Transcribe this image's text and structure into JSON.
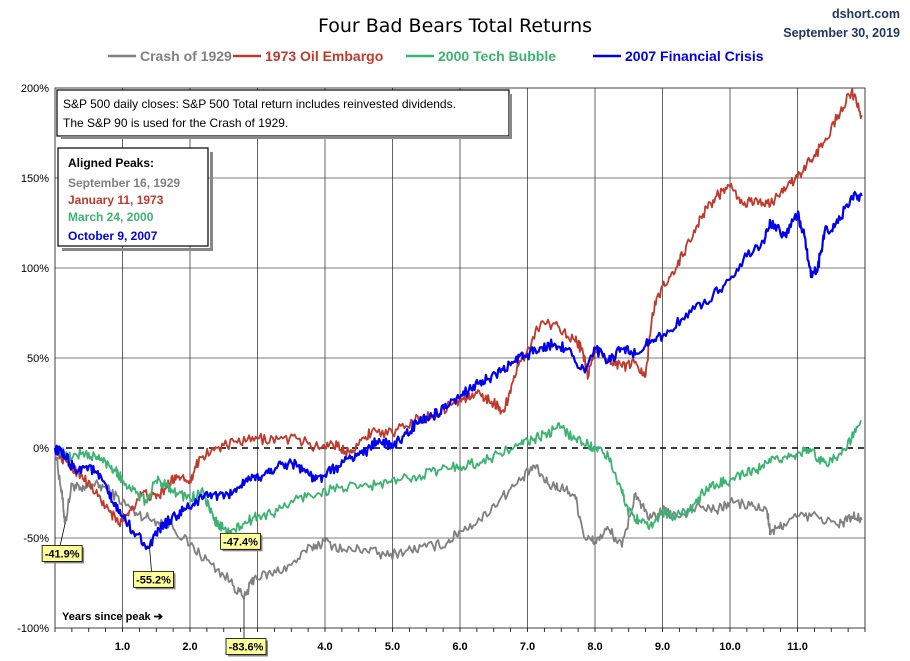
{
  "chart_data": {
    "type": "line",
    "title": "Four Bad Bears Total Returns",
    "source": "dshort.com",
    "date": "September 30, 2019",
    "xlabel": "Years since peak ➔",
    "ylabel": "",
    "xlim": [
      0,
      12
    ],
    "ylim": [
      -100,
      200
    ],
    "y_ticks": [
      "200%",
      "150%",
      "100%",
      "50%",
      "0%",
      "-50%",
      "-100%"
    ],
    "x_ticks": [
      "1.0",
      "2.0",
      "3.0",
      "4.0",
      "5.0",
      "6.0",
      "7.0",
      "8.0",
      "9.0",
      "10.0",
      "11.0"
    ],
    "grid": true,
    "legend_position": "top",
    "note_lines": [
      "S&P 500 daily closes: S&P 500 Total return includes reinvested dividends.",
      "The S&P 90 is used for the Crash of 1929."
    ],
    "aligned_peaks_title": "Aligned Peaks:",
    "series": [
      {
        "name": "Crash of 1929",
        "color": "#808080",
        "peak_date": "September 16, 1929",
        "points": [
          [
            0,
            0
          ],
          [
            0.1,
            -25
          ],
          [
            0.15,
            -42
          ],
          [
            0.25,
            -20
          ],
          [
            0.4,
            -24
          ],
          [
            0.55,
            -20
          ],
          [
            0.75,
            -22
          ],
          [
            1.0,
            -30
          ],
          [
            1.2,
            -36
          ],
          [
            1.45,
            -40
          ],
          [
            1.7,
            -42
          ],
          [
            2.0,
            -54
          ],
          [
            2.3,
            -64
          ],
          [
            2.6,
            -74
          ],
          [
            2.8,
            -83.6
          ],
          [
            2.95,
            -72
          ],
          [
            3.2,
            -70
          ],
          [
            3.5,
            -65
          ],
          [
            3.8,
            -55
          ],
          [
            4.0,
            -52
          ],
          [
            4.3,
            -57
          ],
          [
            4.6,
            -56
          ],
          [
            4.9,
            -60
          ],
          [
            5.2,
            -57
          ],
          [
            5.5,
            -55
          ],
          [
            5.8,
            -53
          ],
          [
            6.0,
            -46
          ],
          [
            6.3,
            -40
          ],
          [
            6.6,
            -28
          ],
          [
            6.9,
            -18
          ],
          [
            7.1,
            -10
          ],
          [
            7.3,
            -20
          ],
          [
            7.5,
            -22
          ],
          [
            7.7,
            -26
          ],
          [
            7.85,
            -50
          ],
          [
            8.0,
            -52
          ],
          [
            8.2,
            -45
          ],
          [
            8.4,
            -55
          ],
          [
            8.6,
            -25
          ],
          [
            8.8,
            -40
          ],
          [
            9.0,
            -35
          ],
          [
            9.2,
            -38
          ],
          [
            9.5,
            -32
          ],
          [
            9.8,
            -35
          ],
          [
            10.0,
            -30
          ],
          [
            10.3,
            -32
          ],
          [
            10.55,
            -35
          ],
          [
            10.6,
            -48
          ],
          [
            10.8,
            -42
          ],
          [
            11.0,
            -38
          ],
          [
            11.3,
            -38
          ],
          [
            11.6,
            -43
          ],
          [
            11.8,
            -38
          ],
          [
            11.95,
            -40
          ]
        ]
      },
      {
        "name": "1973 Oil Embargo",
        "color": "#c0392b",
        "peak_date": "January 11, 1973",
        "points": [
          [
            0,
            0
          ],
          [
            0.2,
            -10
          ],
          [
            0.4,
            -15
          ],
          [
            0.6,
            -25
          ],
          [
            0.8,
            -35
          ],
          [
            0.95,
            -42
          ],
          [
            1.1,
            -35
          ],
          [
            1.3,
            -25
          ],
          [
            1.5,
            -28
          ],
          [
            1.65,
            -22
          ],
          [
            1.8,
            -15
          ],
          [
            2.0,
            -18
          ],
          [
            2.15,
            -5
          ],
          [
            2.4,
            0
          ],
          [
            2.7,
            3
          ],
          [
            3.0,
            5
          ],
          [
            3.3,
            5
          ],
          [
            3.6,
            5
          ],
          [
            3.9,
            0
          ],
          [
            4.1,
            3
          ],
          [
            4.3,
            -2
          ],
          [
            4.5,
            2
          ],
          [
            4.7,
            10
          ],
          [
            5.0,
            8
          ],
          [
            5.3,
            15
          ],
          [
            5.6,
            18
          ],
          [
            5.9,
            25
          ],
          [
            6.1,
            28
          ],
          [
            6.3,
            30
          ],
          [
            6.5,
            25
          ],
          [
            6.65,
            20
          ],
          [
            6.8,
            40
          ],
          [
            7.0,
            55
          ],
          [
            7.2,
            70
          ],
          [
            7.45,
            68
          ],
          [
            7.7,
            60
          ],
          [
            7.8,
            55
          ],
          [
            7.9,
            40
          ],
          [
            8.0,
            55
          ],
          [
            8.2,
            50
          ],
          [
            8.4,
            45
          ],
          [
            8.6,
            48
          ],
          [
            8.75,
            40
          ],
          [
            8.85,
            75
          ],
          [
            9.0,
            90
          ],
          [
            9.2,
            100
          ],
          [
            9.4,
            115
          ],
          [
            9.6,
            130
          ],
          [
            9.8,
            140
          ],
          [
            10.0,
            145
          ],
          [
            10.2,
            135
          ],
          [
            10.4,
            138
          ],
          [
            10.6,
            135
          ],
          [
            10.8,
            145
          ],
          [
            11.0,
            150
          ],
          [
            11.2,
            160
          ],
          [
            11.4,
            170
          ],
          [
            11.6,
            185
          ],
          [
            11.8,
            198
          ],
          [
            11.95,
            185
          ]
        ]
      },
      {
        "name": "2000 Tech Bubble",
        "color": "#3cb371",
        "peak_date": "March 24, 2000",
        "points": [
          [
            0,
            0
          ],
          [
            0.2,
            -5
          ],
          [
            0.4,
            -3
          ],
          [
            0.6,
            -5
          ],
          [
            0.75,
            -8
          ],
          [
            0.9,
            -12
          ],
          [
            1.0,
            -18
          ],
          [
            1.2,
            -25
          ],
          [
            1.35,
            -30
          ],
          [
            1.5,
            -18
          ],
          [
            1.65,
            -20
          ],
          [
            1.8,
            -25
          ],
          [
            2.0,
            -28
          ],
          [
            2.2,
            -25
          ],
          [
            2.35,
            -40
          ],
          [
            2.5,
            -45
          ],
          [
            2.6,
            -47.4
          ],
          [
            2.8,
            -42
          ],
          [
            3.0,
            -38
          ],
          [
            3.3,
            -35
          ],
          [
            3.6,
            -28
          ],
          [
            3.9,
            -25
          ],
          [
            4.2,
            -22
          ],
          [
            4.5,
            -22
          ],
          [
            4.8,
            -20
          ],
          [
            5.1,
            -18
          ],
          [
            5.4,
            -15
          ],
          [
            5.7,
            -12
          ],
          [
            6.0,
            -10
          ],
          [
            6.3,
            -8
          ],
          [
            6.6,
            -3
          ],
          [
            6.9,
            2
          ],
          [
            7.1,
            5
          ],
          [
            7.3,
            8
          ],
          [
            7.5,
            12
          ],
          [
            7.7,
            5
          ],
          [
            7.9,
            2
          ],
          [
            8.0,
            0
          ],
          [
            8.2,
            -5
          ],
          [
            8.4,
            -25
          ],
          [
            8.5,
            -35
          ],
          [
            8.65,
            -40
          ],
          [
            8.8,
            -45
          ],
          [
            9.0,
            -35
          ],
          [
            9.2,
            -38
          ],
          [
            9.4,
            -35
          ],
          [
            9.6,
            -25
          ],
          [
            9.8,
            -20
          ],
          [
            10.0,
            -18
          ],
          [
            10.2,
            -15
          ],
          [
            10.4,
            -12
          ],
          [
            10.6,
            -8
          ],
          [
            10.8,
            -5
          ],
          [
            11.0,
            -3
          ],
          [
            11.2,
            -2
          ],
          [
            11.4,
            -8
          ],
          [
            11.6,
            -5
          ],
          [
            11.8,
            5
          ],
          [
            11.95,
            15
          ]
        ]
      },
      {
        "name": "2007 Financial Crisis",
        "color": "#0000ee",
        "peak_date": "October 9, 2007",
        "points": [
          [
            0,
            0
          ],
          [
            0.15,
            -5
          ],
          [
            0.3,
            -12
          ],
          [
            0.5,
            -10
          ],
          [
            0.7,
            -18
          ],
          [
            0.85,
            -30
          ],
          [
            1.0,
            -38
          ],
          [
            1.2,
            -48
          ],
          [
            1.4,
            -55.2
          ],
          [
            1.55,
            -45
          ],
          [
            1.7,
            -40
          ],
          [
            1.9,
            -35
          ],
          [
            2.1,
            -30
          ],
          [
            2.3,
            -25
          ],
          [
            2.5,
            -28
          ],
          [
            2.7,
            -22
          ],
          [
            2.9,
            -18
          ],
          [
            3.1,
            -15
          ],
          [
            3.3,
            -10
          ],
          [
            3.5,
            -8
          ],
          [
            3.7,
            -12
          ],
          [
            3.85,
            -18
          ],
          [
            4.0,
            -15
          ],
          [
            4.2,
            -10
          ],
          [
            4.4,
            -5
          ],
          [
            4.6,
            -2
          ],
          [
            4.8,
            5
          ],
          [
            5.0,
            0
          ],
          [
            5.2,
            8
          ],
          [
            5.4,
            15
          ],
          [
            5.6,
            18
          ],
          [
            5.8,
            22
          ],
          [
            6.0,
            28
          ],
          [
            6.2,
            35
          ],
          [
            6.4,
            38
          ],
          [
            6.6,
            42
          ],
          [
            6.8,
            48
          ],
          [
            7.0,
            52
          ],
          [
            7.2,
            56
          ],
          [
            7.4,
            58
          ],
          [
            7.6,
            55
          ],
          [
            7.85,
            42
          ],
          [
            8.0,
            55
          ],
          [
            8.2,
            48
          ],
          [
            8.4,
            55
          ],
          [
            8.6,
            52
          ],
          [
            8.8,
            60
          ],
          [
            9.0,
            62
          ],
          [
            9.3,
            72
          ],
          [
            9.6,
            80
          ],
          [
            9.9,
            90
          ],
          [
            10.2,
            105
          ],
          [
            10.5,
            115
          ],
          [
            10.6,
            125
          ],
          [
            10.8,
            118
          ],
          [
            11.0,
            130
          ],
          [
            11.1,
            118
          ],
          [
            11.2,
            95
          ],
          [
            11.3,
            100
          ],
          [
            11.4,
            120
          ],
          [
            11.6,
            125
          ],
          [
            11.8,
            140
          ],
          [
            11.95,
            140
          ]
        ]
      }
    ],
    "annotations": [
      {
        "text": "-41.9%",
        "series": "Crash of 1929",
        "x": 0.15,
        "y": -41.9
      },
      {
        "text": "-55.2%",
        "series": "2007 Financial Crisis",
        "x": 1.4,
        "y": -55.2
      },
      {
        "text": "-47.4%",
        "series": "2000 Tech Bubble",
        "x": 2.6,
        "y": -47.4
      },
      {
        "text": "-83.6%",
        "series": "Crash of 1929",
        "x": 2.8,
        "y": -83.6
      }
    ]
  }
}
